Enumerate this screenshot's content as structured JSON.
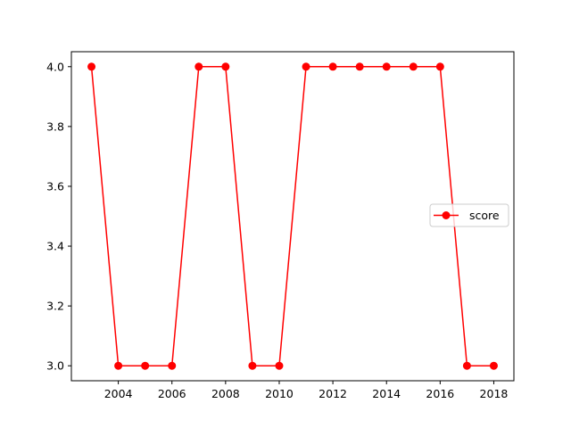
{
  "chart_data": {
    "type": "line",
    "title": "",
    "xlabel": "",
    "ylabel": "",
    "x": [
      2003,
      2004,
      2005,
      2006,
      2007,
      2008,
      2009,
      2010,
      2011,
      2012,
      2013,
      2014,
      2015,
      2016,
      2017,
      2018
    ],
    "series": [
      {
        "name": "score",
        "color": "#ff0000",
        "marker": "circle",
        "values": [
          4.0,
          3.0,
          3.0,
          3.0,
          4.0,
          4.0,
          3.0,
          3.0,
          4.0,
          4.0,
          4.0,
          4.0,
          4.0,
          4.0,
          3.0,
          3.0
        ]
      }
    ],
    "xlim": [
      2002.25,
      2018.75
    ],
    "ylim": [
      2.95,
      4.05
    ],
    "xticks": [
      2004,
      2006,
      2008,
      2010,
      2012,
      2014,
      2016,
      2018
    ],
    "xtick_labels": [
      "2004",
      "2006",
      "2008",
      "2010",
      "2012",
      "2014",
      "2016",
      "2018"
    ],
    "yticks": [
      3.0,
      3.2,
      3.4,
      3.6,
      3.8,
      4.0
    ],
    "ytick_labels": [
      "3.0",
      "3.2",
      "3.4",
      "3.6",
      "3.8",
      "4.0"
    ],
    "grid": false,
    "legend_position": "center-right"
  }
}
